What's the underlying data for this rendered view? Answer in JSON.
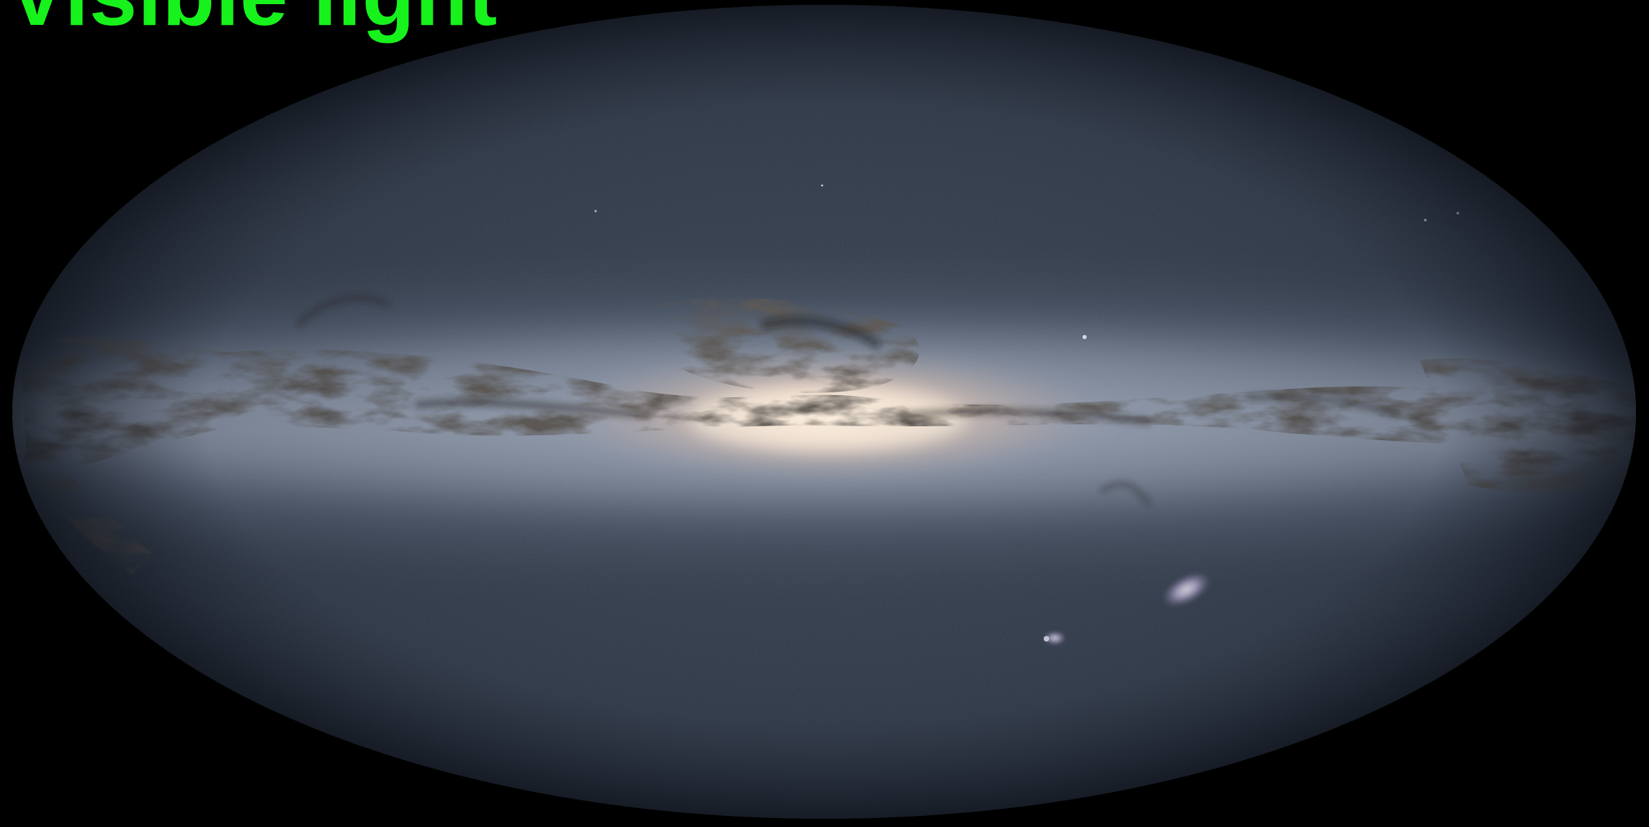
{
  "caption": {
    "text": "Visible light",
    "color": "#17f21c"
  },
  "sky_map": {
    "background_color": "#000000",
    "sky_color": "#2b3543",
    "band_glow_color": "#c7ccd8",
    "core_color": "#fde3c8",
    "dust_color": "#1a1510",
    "projection": "mollweide"
  }
}
